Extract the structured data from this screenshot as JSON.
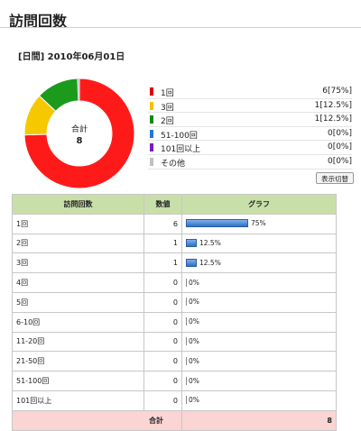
{
  "page": {
    "title": "訪問回数"
  },
  "date_line": "[日間] 2010年06月01日",
  "donut": {
    "center_label": "合計",
    "center_value": "8",
    "segments": [
      {
        "name": "1回",
        "value": 6,
        "color": "#ff1a1a"
      },
      {
        "name": "3回",
        "value": 1,
        "color": "#f6c800"
      },
      {
        "name": "2回",
        "value": 1,
        "color": "#1c9a1c"
      },
      {
        "name": "その他",
        "value": 0,
        "color": "#cfcfcf"
      }
    ]
  },
  "legend": [
    {
      "label": "1回",
      "value": "6[75%]",
      "color": "#e00000"
    },
    {
      "label": "3回",
      "value": "1[12.5%]",
      "color": "#f2c200"
    },
    {
      "label": "2回",
      "value": "1[12.5%]",
      "color": "#128a12"
    },
    {
      "label": "51-100回",
      "value": "0[0%]",
      "color": "#2477d8"
    },
    {
      "label": "101回以上",
      "value": "0[0%]",
      "color": "#7a1ab8"
    },
    {
      "label": "その他",
      "value": "0[0%]",
      "color": "#c0c0c0"
    }
  ],
  "toggle_label": "表示切替",
  "table": {
    "headers": [
      "訪問回数",
      "数値",
      "グラフ"
    ],
    "rows": [
      {
        "label": "1回",
        "value": "6",
        "pct": "75%",
        "fraction": 0.75
      },
      {
        "label": "2回",
        "value": "1",
        "pct": "12.5%",
        "fraction": 0.125
      },
      {
        "label": "3回",
        "value": "1",
        "pct": "12.5%",
        "fraction": 0.125
      },
      {
        "label": "4回",
        "value": "0",
        "pct": "0%",
        "fraction": 0
      },
      {
        "label": "5回",
        "value": "0",
        "pct": "0%",
        "fraction": 0
      },
      {
        "label": "6-10回",
        "value": "0",
        "pct": "0%",
        "fraction": 0
      },
      {
        "label": "11-20回",
        "value": "0",
        "pct": "0%",
        "fraction": 0
      },
      {
        "label": "21-50回",
        "value": "0",
        "pct": "0%",
        "fraction": 0
      },
      {
        "label": "51-100回",
        "value": "0",
        "pct": "0%",
        "fraction": 0
      },
      {
        "label": "101回以上",
        "value": "0",
        "pct": "0%",
        "fraction": 0
      }
    ],
    "footer": {
      "label": "合計",
      "value": "8"
    }
  }
}
